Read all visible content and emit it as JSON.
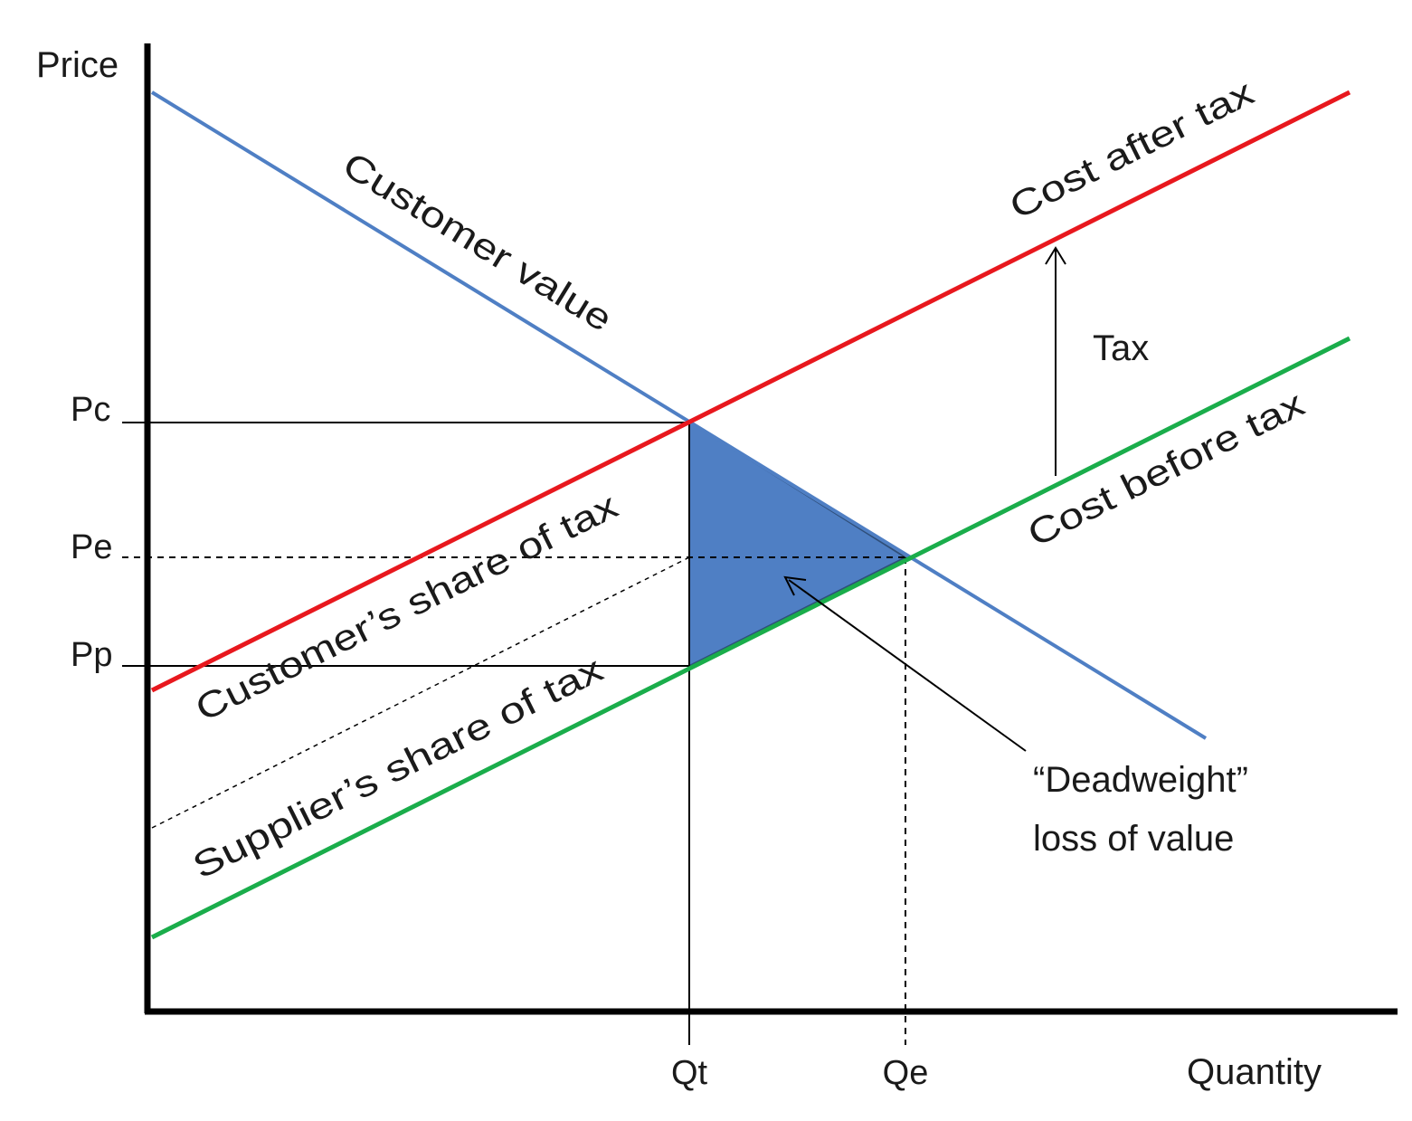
{
  "axes": {
    "y_label": "Price",
    "x_label": "Quantity",
    "y_ticks": [
      "Pc",
      "Pe",
      "Pp"
    ],
    "x_ticks": [
      "Qt",
      "Qe"
    ]
  },
  "curves": {
    "demand": {
      "label": "Customer value",
      "color": "#4f7fc4"
    },
    "supply_after_tax": {
      "label": "Cost after tax",
      "color": "#e8181e"
    },
    "supply_before_tax": {
      "label": "Cost before tax",
      "color": "#1aad4b"
    }
  },
  "annotations": {
    "tax": "Tax",
    "customer_share": "Customer’s share of tax",
    "supplier_share": "Supplier’s share  of tax",
    "deadweight_line1": "“Deadweight”",
    "deadweight_line2": "loss of value"
  },
  "colors": {
    "axis": "#000000",
    "deadweight_fill": "#4f7fc4",
    "guide": "#000000"
  }
}
